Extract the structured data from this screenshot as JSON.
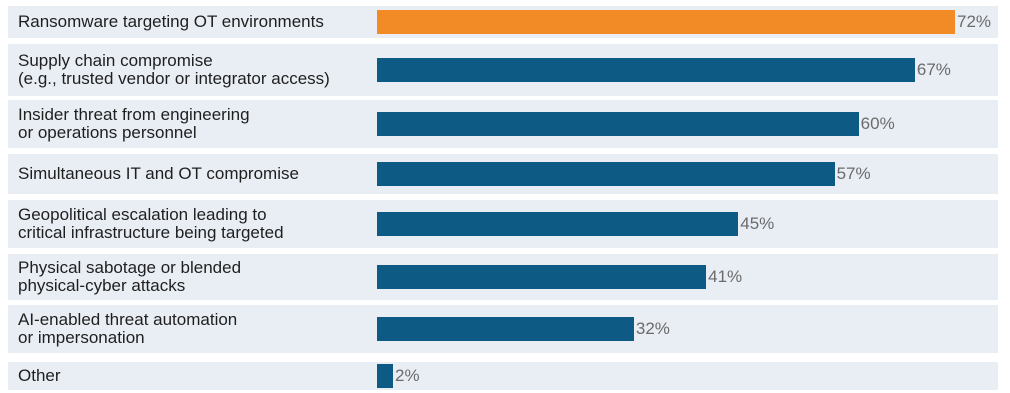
{
  "colors": {
    "highlight": "#f28a25",
    "default": "#0d5a84"
  },
  "chart_data": {
    "type": "bar",
    "orientation": "horizontal",
    "categories": [
      "Ransomware targeting OT environments",
      "Supply chain compromise\n(e.g., trusted vendor or integrator access)",
      "Insider threat from engineering\nor operations personnel",
      "Simultaneous IT and OT compromise",
      "Geopolitical escalation leading to\ncritical infrastructure being targeted",
      "Physical sabotage or blended\nphysical-cyber attacks",
      "AI-enabled threat automation\nor impersonation",
      "Other"
    ],
    "values": [
      72,
      67,
      60,
      57,
      45,
      41,
      32,
      2
    ],
    "value_labels": [
      "72%",
      "67%",
      "60%",
      "57%",
      "45%",
      "41%",
      "32%",
      "2%"
    ],
    "highlight_index": 0,
    "xlim": [
      0,
      72
    ],
    "title": "",
    "xlabel": "",
    "ylabel": ""
  }
}
